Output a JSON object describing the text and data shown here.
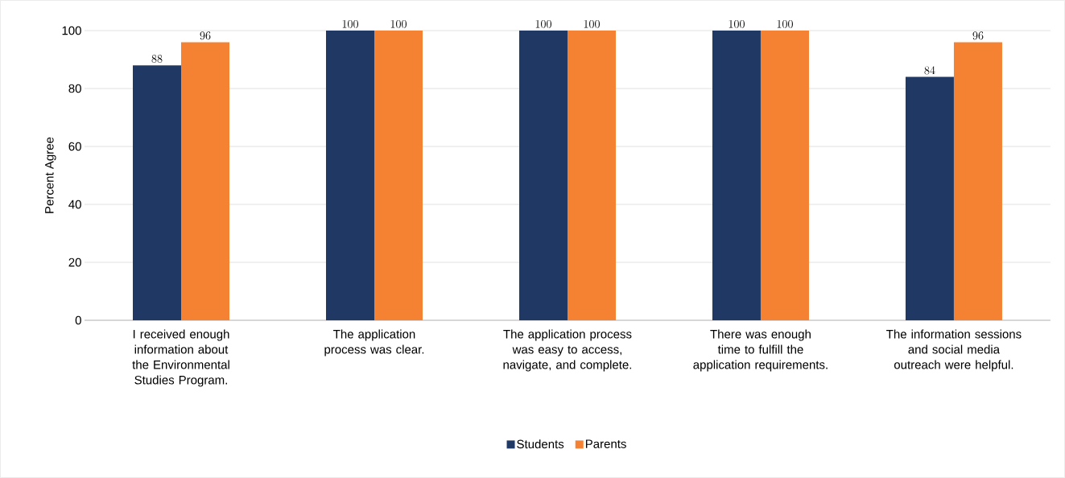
{
  "chart_data": {
    "type": "bar",
    "ylabel": "Percent Agree",
    "categories": [
      "I received enough information about the Environmental Studies Program.",
      "The application process was clear.",
      "The application process was easy to access, navigate, and complete.",
      "There was enough time to fulfill the application requirements.",
      "The information sessions and social media outreach were helpful."
    ],
    "series": [
      {
        "name": "Students",
        "color": "#1f3864",
        "values": [
          88,
          100,
          100,
          100,
          84
        ]
      },
      {
        "name": "Parents",
        "color": "#f58232",
        "values": [
          96,
          100,
          100,
          100,
          96
        ]
      }
    ],
    "ylim": [
      0,
      100
    ],
    "yticks": [
      0,
      20,
      40,
      60,
      80,
      100
    ],
    "grid": "y",
    "legend": "bottom",
    "data_labels": true
  }
}
